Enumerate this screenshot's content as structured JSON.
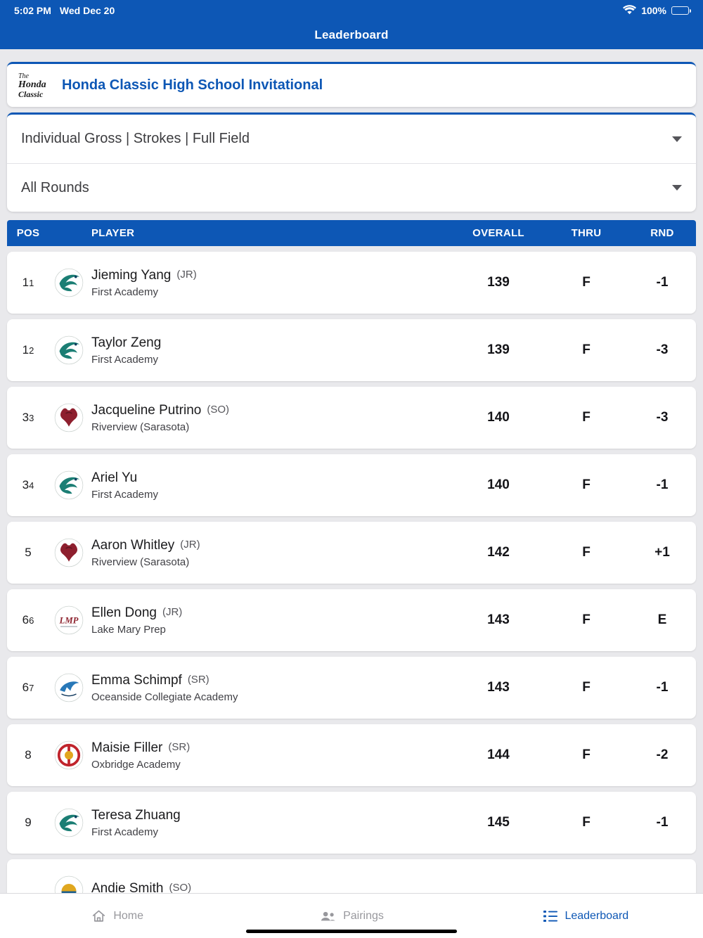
{
  "colors": {
    "blue": "#0d57b5",
    "page_bg": "#e9e9ec"
  },
  "status_bar": {
    "time": "5:02 PM",
    "date": "Wed Dec 20",
    "battery_percent": "100%"
  },
  "header": {
    "title": "Leaderboard"
  },
  "tournament_card": {
    "title": "Honda Classic High School Invitational",
    "logo_lines": [
      "The",
      "Honda",
      "Classic"
    ]
  },
  "filters": {
    "scoring": "Individual Gross | Strokes | Full Field",
    "rounds": "All Rounds"
  },
  "table": {
    "columns": {
      "pos": "POS",
      "player": "PLAYER",
      "overall": "OVERALL",
      "thru": "THRU",
      "rnd": "RND"
    },
    "rows": [
      {
        "pos": "1",
        "pos_sub": "1",
        "name": "Jieming Yang",
        "year": "(JR)",
        "school": "First Academy",
        "overall": "139",
        "thru": "F",
        "rnd": "-1",
        "logo": "first_academy"
      },
      {
        "pos": "1",
        "pos_sub": "2",
        "name": "Taylor Zeng",
        "year": "",
        "school": "First Academy",
        "overall": "139",
        "thru": "F",
        "rnd": "-3",
        "logo": "first_academy"
      },
      {
        "pos": "3",
        "pos_sub": "3",
        "name": "Jacqueline Putrino",
        "year": "(SO)",
        "school": "Riverview (Sarasota)",
        "overall": "140",
        "thru": "F",
        "rnd": "-3",
        "logo": "riverview"
      },
      {
        "pos": "3",
        "pos_sub": "4",
        "name": "Ariel Yu",
        "year": "",
        "school": "First Academy",
        "overall": "140",
        "thru": "F",
        "rnd": "-1",
        "logo": "first_academy"
      },
      {
        "pos": "5",
        "pos_sub": "",
        "name": "Aaron Whitley",
        "year": "(JR)",
        "school": "Riverview (Sarasota)",
        "overall": "142",
        "thru": "F",
        "rnd": "+1",
        "logo": "riverview"
      },
      {
        "pos": "6",
        "pos_sub": "6",
        "name": "Ellen Dong",
        "year": "(JR)",
        "school": "Lake Mary Prep",
        "overall": "143",
        "thru": "F",
        "rnd": "E",
        "logo": "lake_mary"
      },
      {
        "pos": "6",
        "pos_sub": "7",
        "name": "Emma Schimpf",
        "year": "(SR)",
        "school": "Oceanside Collegiate Academy",
        "overall": "143",
        "thru": "F",
        "rnd": "-1",
        "logo": "oceanside"
      },
      {
        "pos": "8",
        "pos_sub": "",
        "name": "Maisie Filler",
        "year": "(SR)",
        "school": "Oxbridge Academy",
        "overall": "144",
        "thru": "F",
        "rnd": "-2",
        "logo": "oxbridge"
      },
      {
        "pos": "9",
        "pos_sub": "",
        "name": "Teresa Zhuang",
        "year": "",
        "school": "First Academy",
        "overall": "145",
        "thru": "F",
        "rnd": "-1",
        "logo": "first_academy"
      },
      {
        "pos": "",
        "pos_sub": "",
        "name": "Andie Smith",
        "year": "(SO)",
        "school": "",
        "overall": "",
        "thru": "",
        "rnd": "",
        "logo": "andie"
      }
    ]
  },
  "logos": {
    "first_academy": {
      "shape": "eagle",
      "primary": "#1b7e74",
      "secondary": "#0c3b5e",
      "label": ""
    },
    "riverview": {
      "shape": "ram",
      "primary": "#8e1f2e",
      "secondary": "#5f1520",
      "label": ""
    },
    "lake_mary": {
      "shape": "letters",
      "primary": "#8e2430",
      "secondary": "#9aa3ad",
      "label": "LMP"
    },
    "oceanside": {
      "shape": "shark",
      "primary": "#2878b8",
      "secondary": "#123a5e",
      "label": ""
    },
    "oxbridge": {
      "shape": "rings",
      "primary": "#c0242c",
      "secondary": "#e2a61e",
      "label": ""
    },
    "andie": {
      "shape": "sun",
      "primary": "#e0a71f",
      "secondary": "#1c5f8e",
      "label": ""
    }
  },
  "tab_bar": {
    "items": [
      {
        "label": "Home",
        "icon": "home-icon",
        "active": false
      },
      {
        "label": "Pairings",
        "icon": "pairings-icon",
        "active": false
      },
      {
        "label": "Leaderboard",
        "icon": "leaderboard-icon",
        "active": true
      }
    ]
  }
}
